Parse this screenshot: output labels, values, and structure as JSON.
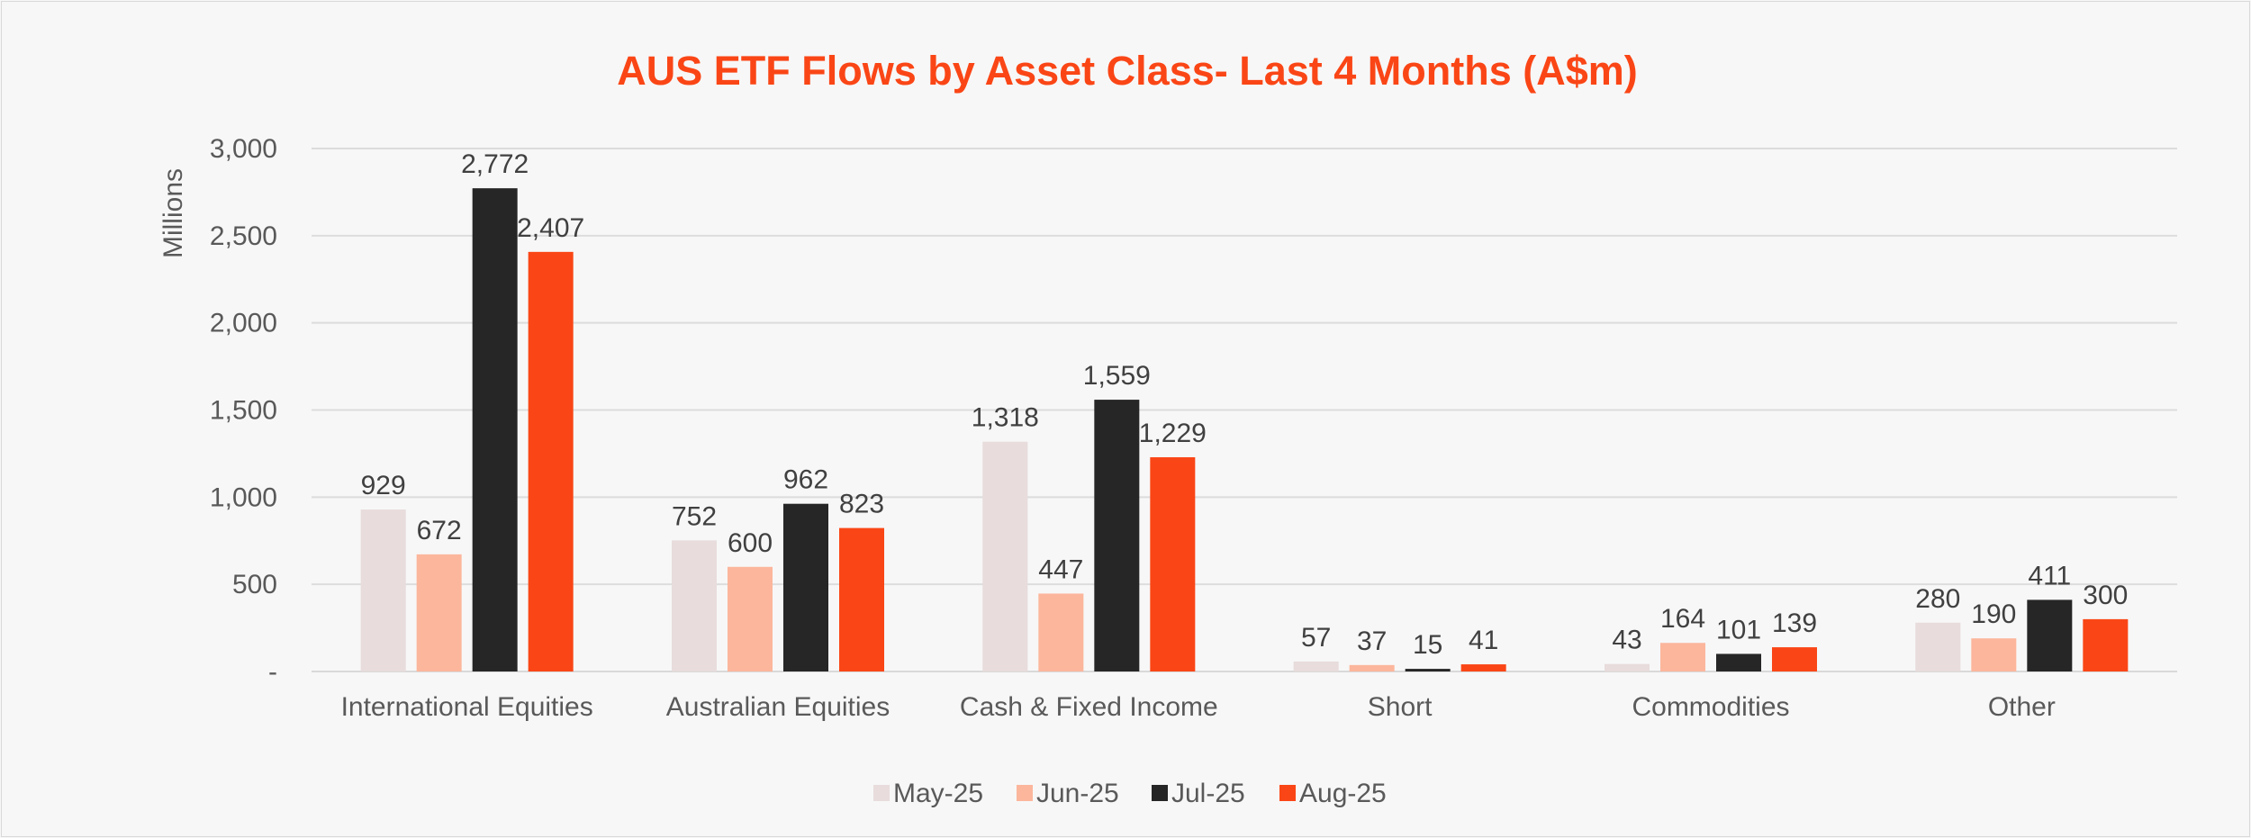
{
  "chart_data": {
    "type": "bar",
    "title": "AUS ETF Flows by Asset Class- Last 4 Months (A$m)",
    "ylabel": "Millions",
    "xlabel": "",
    "ylim": [
      0,
      3000
    ],
    "yticks": [
      0,
      500,
      1000,
      1500,
      2000,
      2500,
      3000
    ],
    "ytick_labels": [
      "-",
      "500",
      "1,000",
      "1,500",
      "2,000",
      "2,500",
      "3,000"
    ],
    "grid": true,
    "legend_position": "bottom",
    "categories": [
      "International Equities",
      "Australian Equities",
      "Cash & Fixed Income",
      "Short",
      "Commodities",
      "Other"
    ],
    "series": [
      {
        "name": "May-25",
        "color": "#e8dcdc",
        "values": [
          929,
          752,
          1318,
          57,
          43,
          280
        ],
        "labels": [
          "929",
          "752",
          "1,318",
          "57",
          "43",
          "280"
        ]
      },
      {
        "name": "Jun-25",
        "color": "#fcb69c",
        "values": [
          672,
          600,
          447,
          37,
          164,
          190
        ],
        "labels": [
          "672",
          "600",
          "447",
          "37",
          "164",
          "190"
        ]
      },
      {
        "name": "Jul-25",
        "color": "#262626",
        "values": [
          2772,
          962,
          1559,
          15,
          101,
          411
        ],
        "labels": [
          "2,772",
          "962",
          "1,559",
          "15",
          "101",
          "411"
        ]
      },
      {
        "name": "Aug-25",
        "color": "#fa4616",
        "values": [
          2407,
          823,
          1229,
          41,
          139,
          300
        ],
        "labels": [
          "2,407",
          "823",
          "1,229",
          "41",
          "139",
          "300"
        ]
      }
    ]
  }
}
